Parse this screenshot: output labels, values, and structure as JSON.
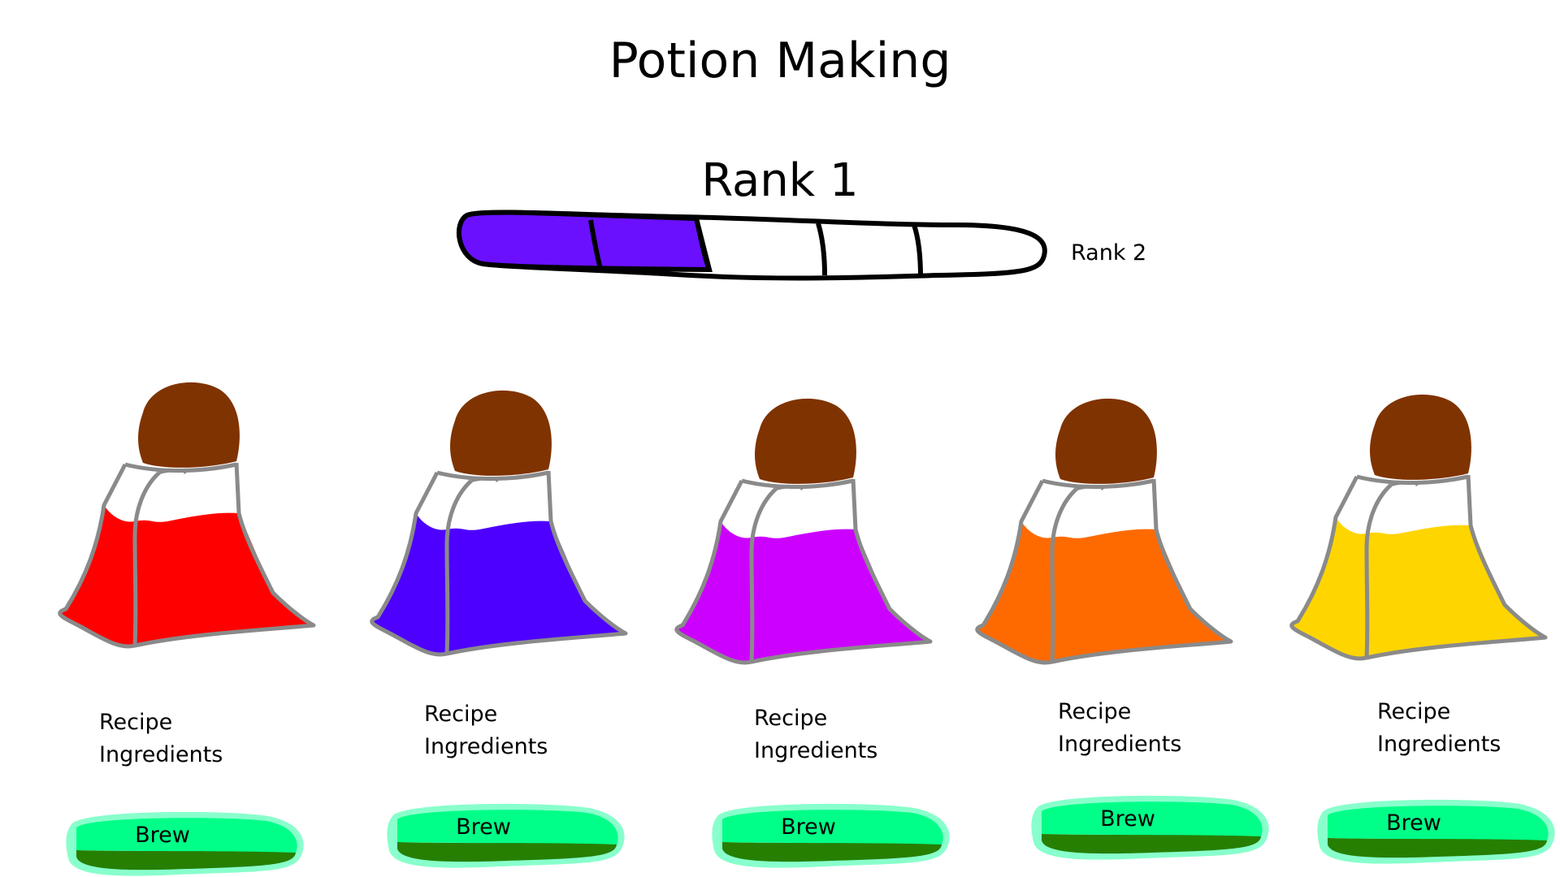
{
  "title": "Potion Making",
  "rank": {
    "current_label": "Rank 1",
    "next_label": "Rank 2",
    "progress_segments_filled": 2,
    "progress_segments_total": 5,
    "fill_color": "#6a10ff"
  },
  "potions": [
    {
      "color": "#ff0000",
      "recipe_label": "Recipe",
      "ingredients_label": "Ingredients",
      "brew_label": "Brew"
    },
    {
      "color": "#4d00ff",
      "recipe_label": "Recipe",
      "ingredients_label": "Ingredients",
      "brew_label": "Brew"
    },
    {
      "color": "#cc00ff",
      "recipe_label": "Recipe",
      "ingredients_label": "Ingredients",
      "brew_label": "Brew"
    },
    {
      "color": "#ff6a00",
      "recipe_label": "Recipe",
      "ingredients_label": "Ingredients",
      "brew_label": "Brew"
    },
    {
      "color": "#ffd500",
      "recipe_label": "Recipe",
      "ingredients_label": "Ingredients",
      "brew_label": "Brew"
    }
  ],
  "colors": {
    "cork": "#7f3300",
    "glass_outline": "#8a8a8a",
    "brew_button_light": "#00ff88",
    "brew_button_shadow": "#267f00",
    "brew_button_glow": "#88ffcc"
  }
}
